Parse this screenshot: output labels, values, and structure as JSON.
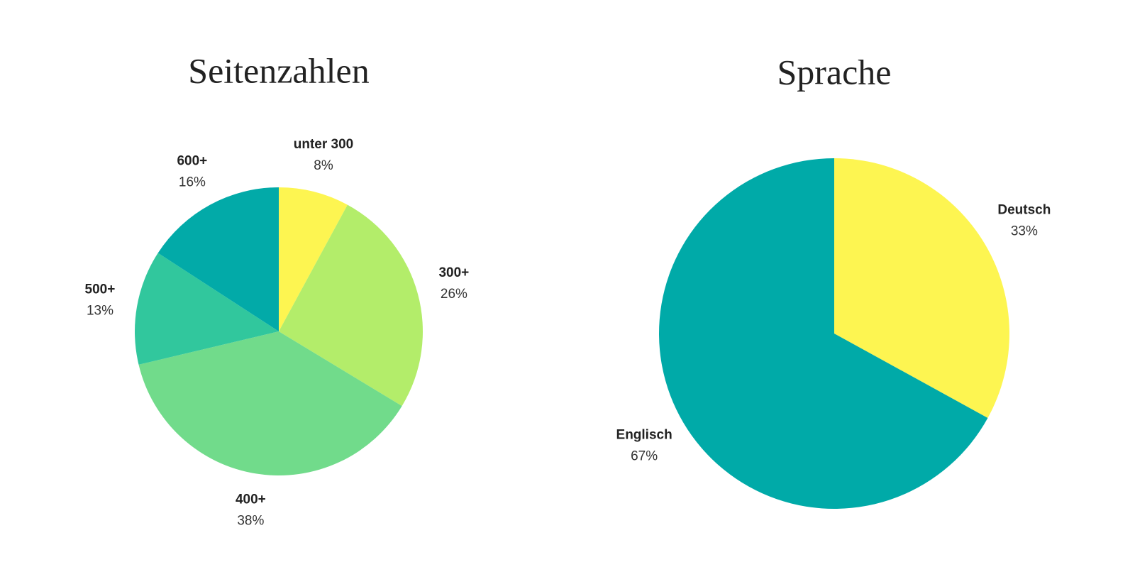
{
  "chart_data": [
    {
      "type": "pie",
      "title": "Seitenzahlen",
      "categories": [
        "unter 300",
        "300+",
        "400+",
        "500+",
        "600+"
      ],
      "values": [
        8,
        26,
        38,
        13,
        16
      ],
      "value_labels": [
        "8%",
        "26%",
        "38%",
        "13%",
        "16%"
      ],
      "colors": [
        "#fdf551",
        "#b3ed6a",
        "#71db8b",
        "#31c79d",
        "#02aaa8"
      ]
    },
    {
      "type": "pie",
      "title": "Sprache",
      "categories": [
        "Deutsch",
        "Englisch"
      ],
      "values": [
        33,
        67
      ],
      "value_labels": [
        "33%",
        "67%"
      ],
      "colors": [
        "#fdf551",
        "#00aaa8"
      ]
    }
  ]
}
